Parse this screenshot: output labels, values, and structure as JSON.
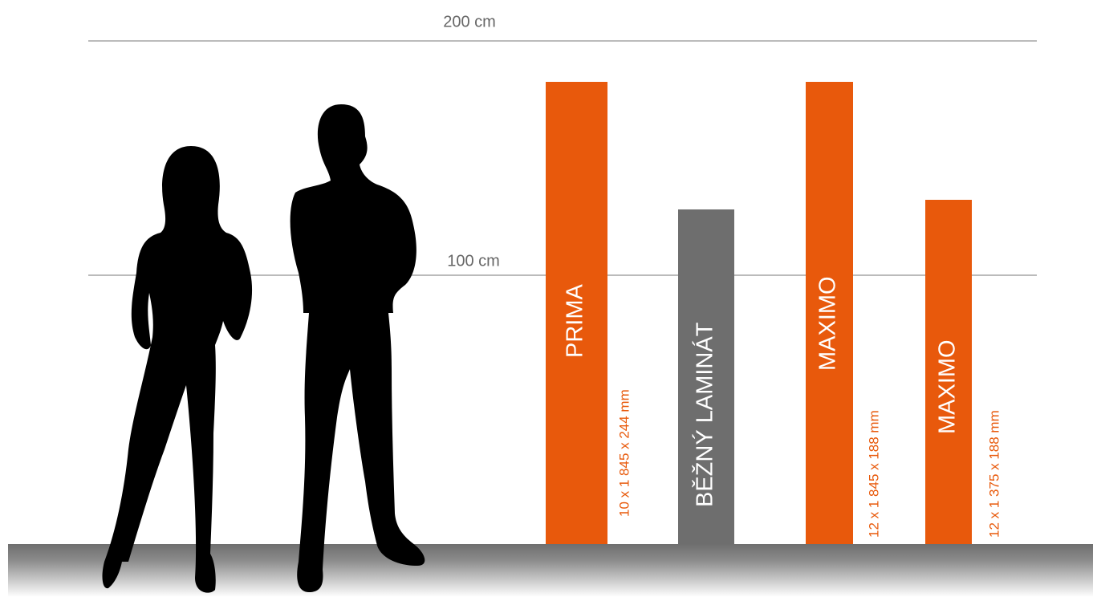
{
  "scale": {
    "top": "200 cm",
    "middle": "100 cm"
  },
  "products": [
    {
      "name": "PRIMA",
      "size": "10 x 1 845 x 244 mm"
    },
    {
      "name": "BĚŽNÝ LAMINÁT"
    },
    {
      "name": "MAXIMO",
      "size": "12 x 1 845 x 188 mm"
    },
    {
      "name": "MAXIMO",
      "size": "12 x 1 375 x 188 mm"
    }
  ]
}
